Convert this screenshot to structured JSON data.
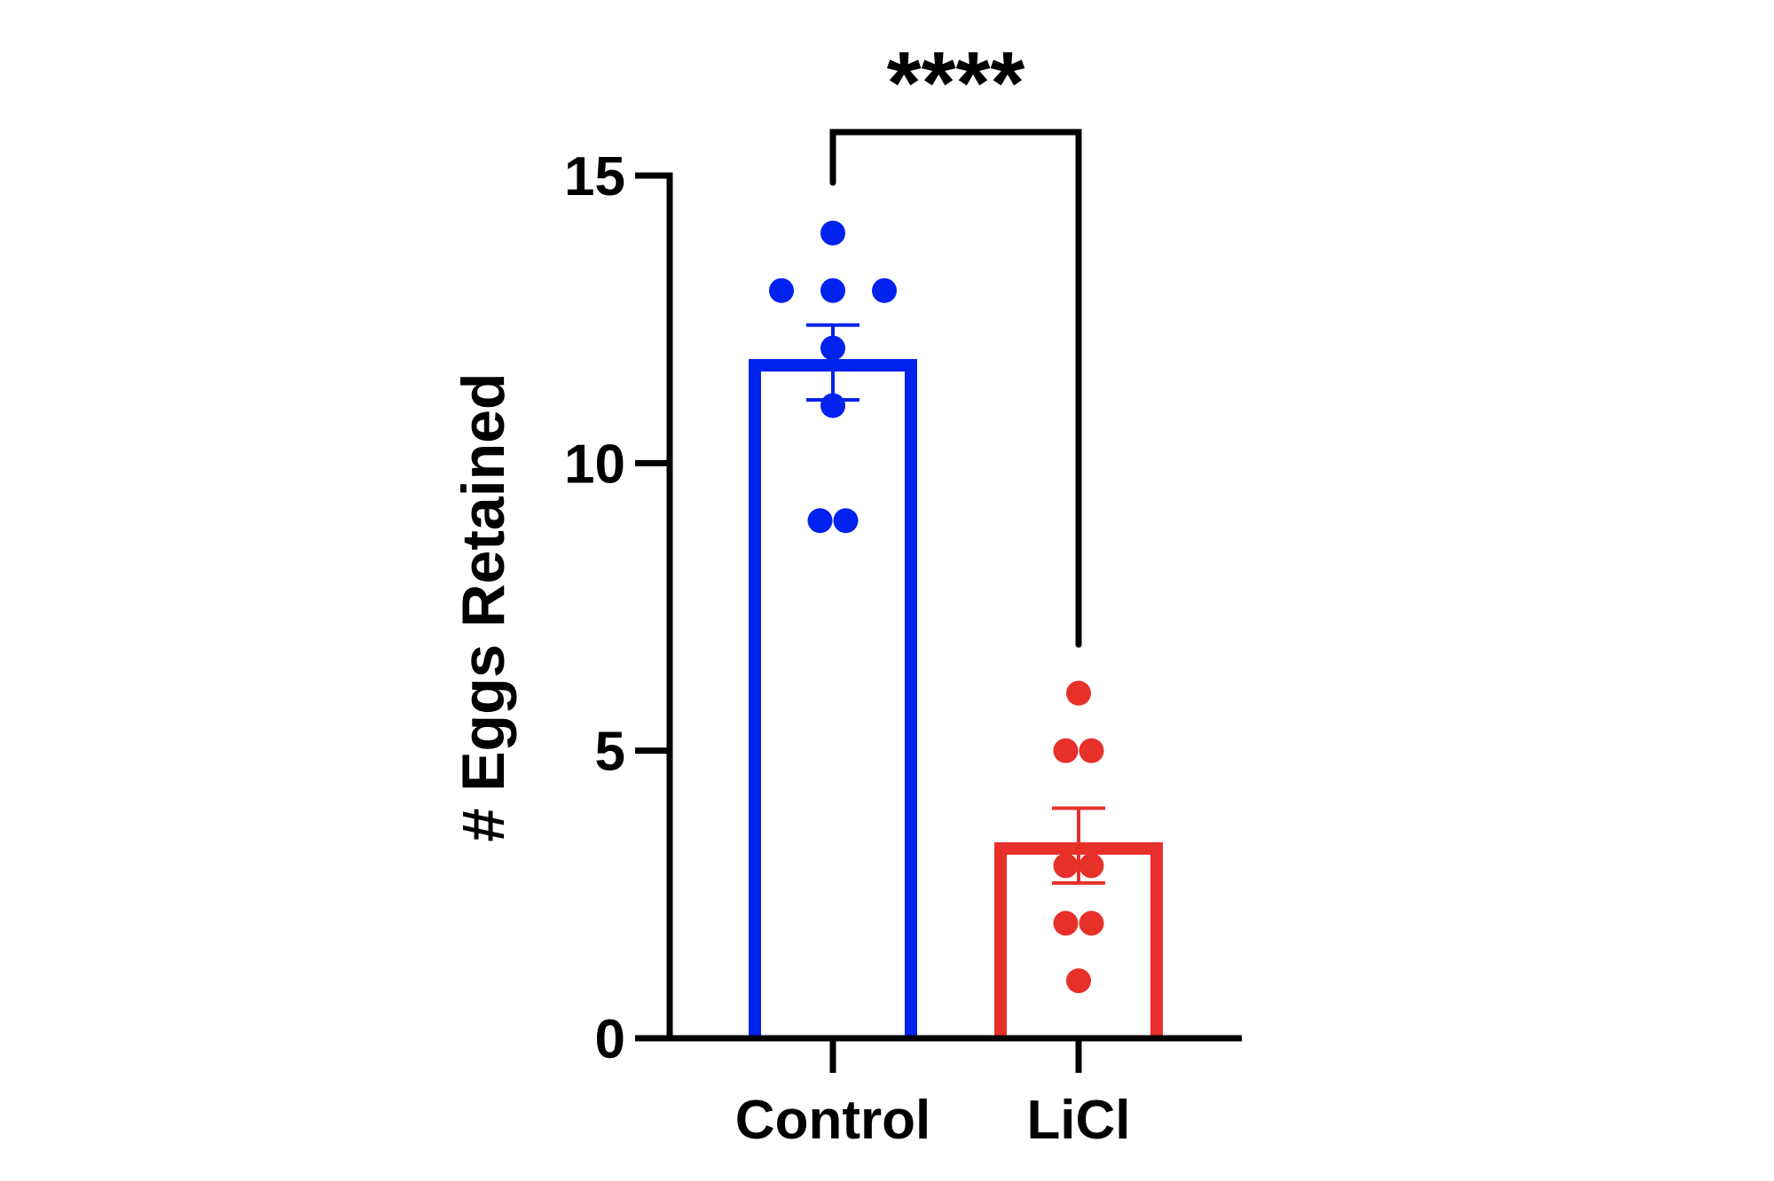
{
  "chart_data": {
    "type": "bar",
    "ylabel": "# Eggs Retained",
    "xlabel": "",
    "ylim": [
      0,
      15
    ],
    "yticks": [
      0,
      5,
      10,
      15
    ],
    "categories": [
      "Control",
      "LiCl"
    ],
    "groups": [
      {
        "category": "Control",
        "mean": 11.7,
        "sem_low": 11.1,
        "sem_high": 12.4,
        "points": [
          14,
          13,
          13,
          13,
          12,
          11,
          9,
          9
        ],
        "color": "#0022ee"
      },
      {
        "category": "LiCl",
        "mean": 3.3,
        "sem_low": 2.7,
        "sem_high": 4.0,
        "points": [
          6,
          5,
          5,
          3,
          3,
          2,
          2,
          1
        ],
        "color": "#e8302a"
      }
    ],
    "significance": {
      "label": "****",
      "between": [
        "Control",
        "LiCl"
      ]
    },
    "grid": false,
    "legend": "none"
  }
}
